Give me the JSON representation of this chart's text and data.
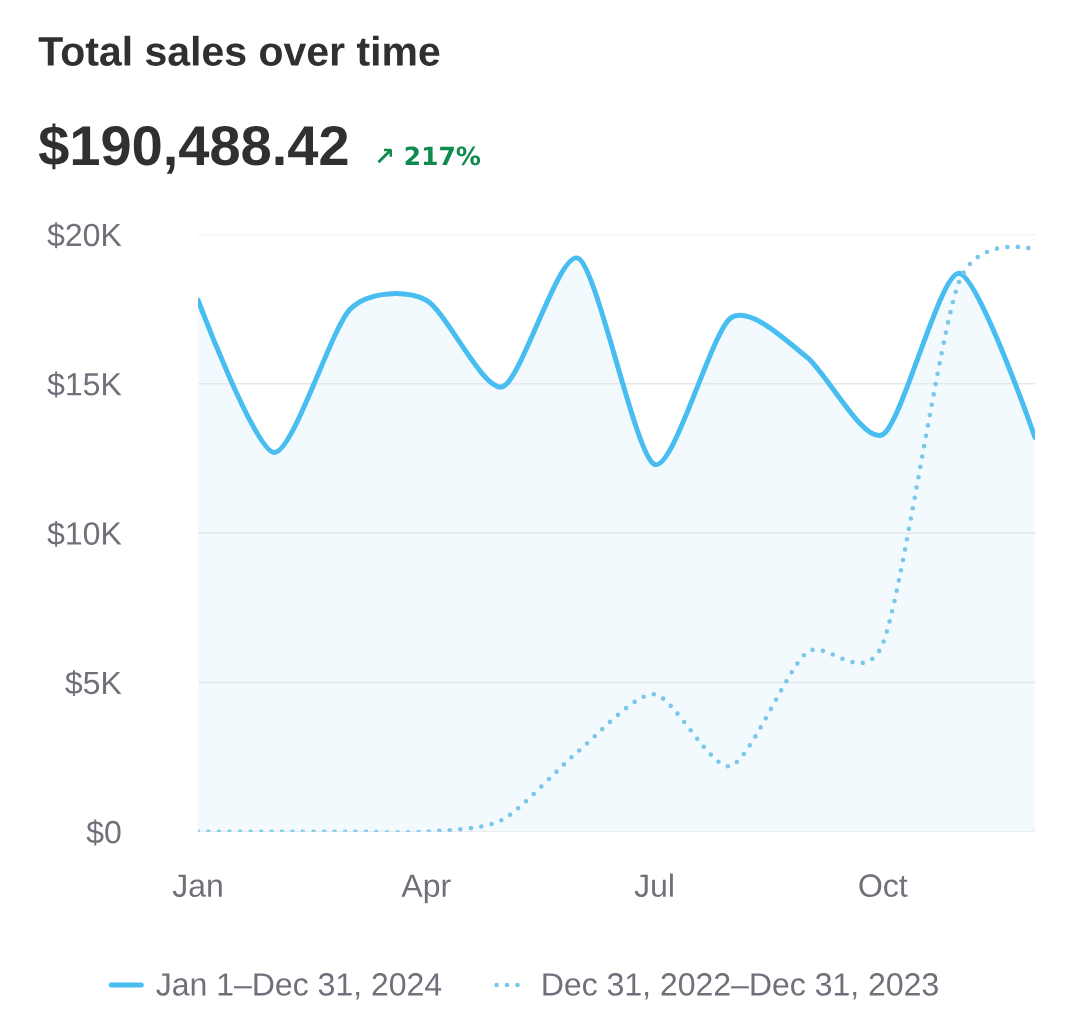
{
  "chart_data": {
    "type": "line",
    "title": "Total sales over time",
    "subtitle": "$190,488.42",
    "annotations": [
      "↗ 217%"
    ],
    "categories": [
      "Jan",
      null,
      null,
      "Apr",
      null,
      null,
      "Jul",
      null,
      null,
      "Oct",
      null,
      null
    ],
    "series": [
      {
        "name": "Jan 1–Dec 31, 2024",
        "type": "area",
        "color": "#47bdf0",
        "line_style": "solid",
        "values": [
          17800,
          12700,
          17500,
          17800,
          14900,
          19200,
          12300,
          17200,
          15900,
          13300,
          18700,
          13200
        ]
      },
      {
        "name": "Dec 31, 2022–Dec 31, 2023",
        "color": "#7ac7ea",
        "line_style": "dotted",
        "values": [
          0,
          0,
          0,
          0,
          400,
          2700,
          4600,
          2200,
          6000,
          6300,
          18400,
          19500
        ]
      }
    ],
    "ylim": [
      0,
      20000
    ],
    "yticks": [
      {
        "value": 0,
        "label": "$0"
      },
      {
        "value": 5000,
        "label": "$5K"
      },
      {
        "value": 10000,
        "label": "$10K"
      },
      {
        "value": 15000,
        "label": "$15K"
      },
      {
        "value": 20000,
        "label": "$20K"
      }
    ],
    "grid": "y",
    "legend": "bottom"
  }
}
